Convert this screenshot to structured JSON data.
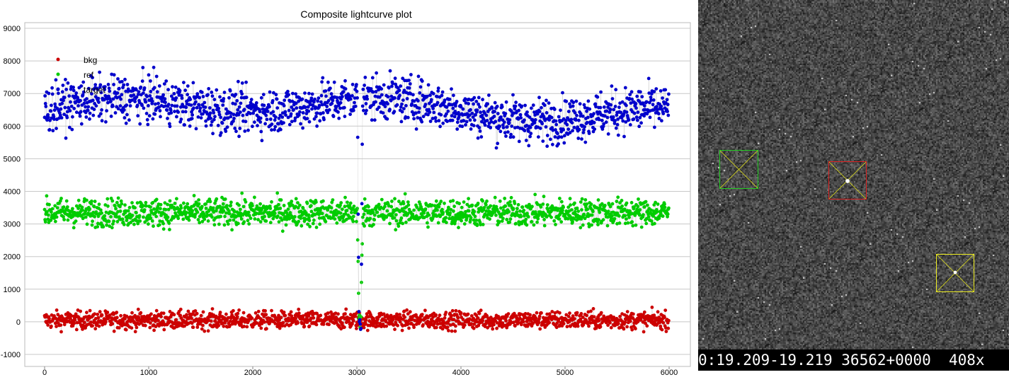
{
  "chart_data": {
    "type": "scatter",
    "title": "Composite lightcurve plot",
    "xlabel": "",
    "ylabel": "",
    "xlim": [
      0,
      6000
    ],
    "ylim": [
      -1000,
      9000
    ],
    "x_ticks": [
      "0",
      "1000",
      "2000",
      "3000",
      "4000",
      "5000",
      "6000"
    ],
    "y_ticks": [
      "-1000",
      "0",
      "1000",
      "2000",
      "3000",
      "4000",
      "5000",
      "6000",
      "7000",
      "8000",
      "9000"
    ],
    "grid": "horizontal",
    "legend_position": "top-left",
    "series": [
      {
        "name": "bkg",
        "color": "#cc0000",
        "n_points": 6000,
        "mean": 50,
        "spread": 320,
        "x_range": [
          0,
          6000
        ]
      },
      {
        "name": "ref",
        "color": "#00cc00",
        "n_points": 6000,
        "mean": 3350,
        "spread": 500,
        "x_range": [
          0,
          6000
        ],
        "dip_at_x": 3030,
        "dip_to": 0
      },
      {
        "name": "target",
        "color": "#0000cc",
        "n_points": 6000,
        "mean": 6500,
        "spread": 800,
        "x_range": [
          0,
          6000
        ],
        "dip_at_x": 3030,
        "dip_to": 0
      }
    ]
  },
  "image_viewer": {
    "status_text": "0:19.209-19.219 36562+0000  408x",
    "markers": [
      {
        "role": "ref",
        "color": "#22cc22"
      },
      {
        "role": "target",
        "color": "#dd2222"
      },
      {
        "role": "check",
        "color": "#eeee22"
      }
    ]
  }
}
